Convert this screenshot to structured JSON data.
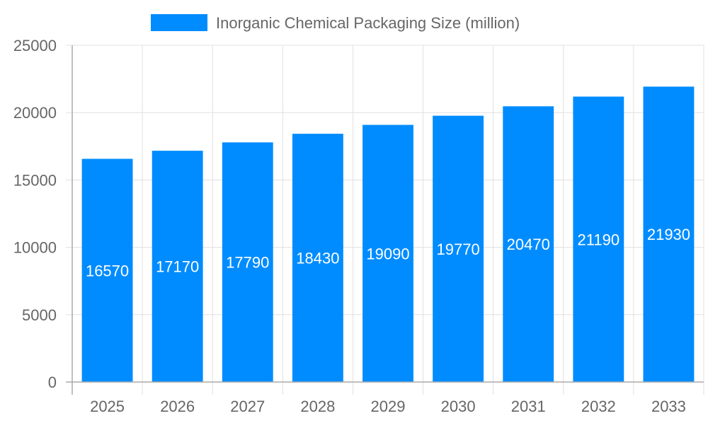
{
  "chart_data": {
    "type": "bar",
    "title": "",
    "xlabel": "",
    "ylabel": "",
    "categories": [
      "2025",
      "2026",
      "2027",
      "2028",
      "2029",
      "2030",
      "2031",
      "2032",
      "2033"
    ],
    "series": [
      {
        "name": "Inorganic Chemical Packaging Size (million)",
        "values": [
          16570,
          17170,
          17790,
          18430,
          19090,
          19770,
          20470,
          21190,
          21930
        ]
      }
    ],
    "ylim": [
      0,
      25000
    ],
    "yticks": [
      0,
      5000,
      10000,
      15000,
      20000,
      25000
    ],
    "grid": true,
    "legend": "top-center",
    "data_labels": true,
    "colors": {
      "bar": "#008cff",
      "label": "#ffffff",
      "text": "#666666",
      "grid": "#e0e0e0",
      "axis": "#aaaaaa"
    }
  }
}
